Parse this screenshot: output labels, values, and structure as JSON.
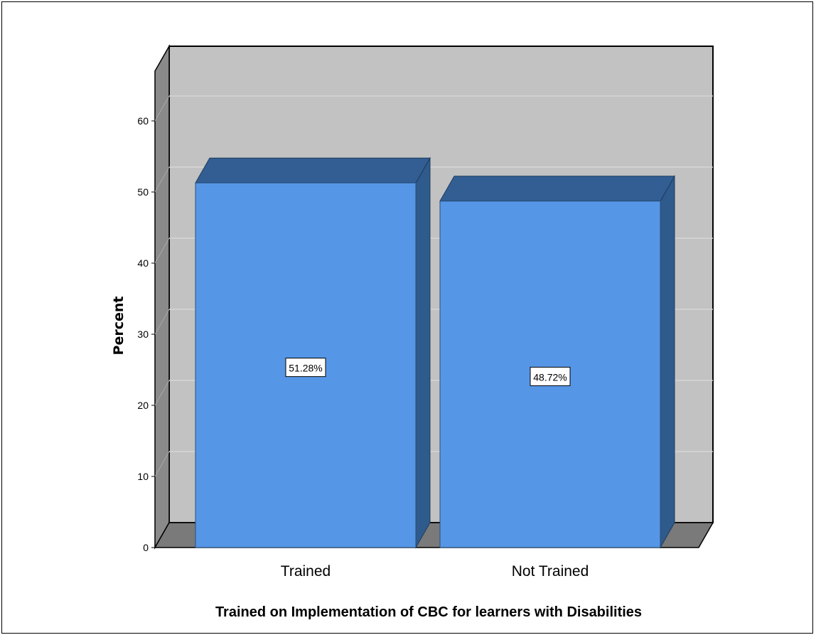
{
  "chart_data": {
    "type": "bar",
    "style": "3d",
    "categories": [
      "Trained",
      "Not Trained"
    ],
    "values": [
      51.28,
      48.72
    ],
    "data_labels": [
      "51.28%",
      "48.72%"
    ],
    "ylabel": "Percent",
    "xlabel": "Trained on Implementation of CBC for learners with Disabilities",
    "ylim": [
      0,
      60
    ],
    "yticks": [
      0,
      10,
      20,
      30,
      40,
      50,
      60
    ],
    "grid": true,
    "legend": "none",
    "colors": {
      "bar_front": "#5696e6",
      "bar_top": "#325e93",
      "bar_side": "#2f5a8c",
      "back_wall": "#c2c2c2",
      "side_wall": "#8a8a8a",
      "floor": "#7a7a7a",
      "gridline": "#d6d6d6"
    }
  }
}
